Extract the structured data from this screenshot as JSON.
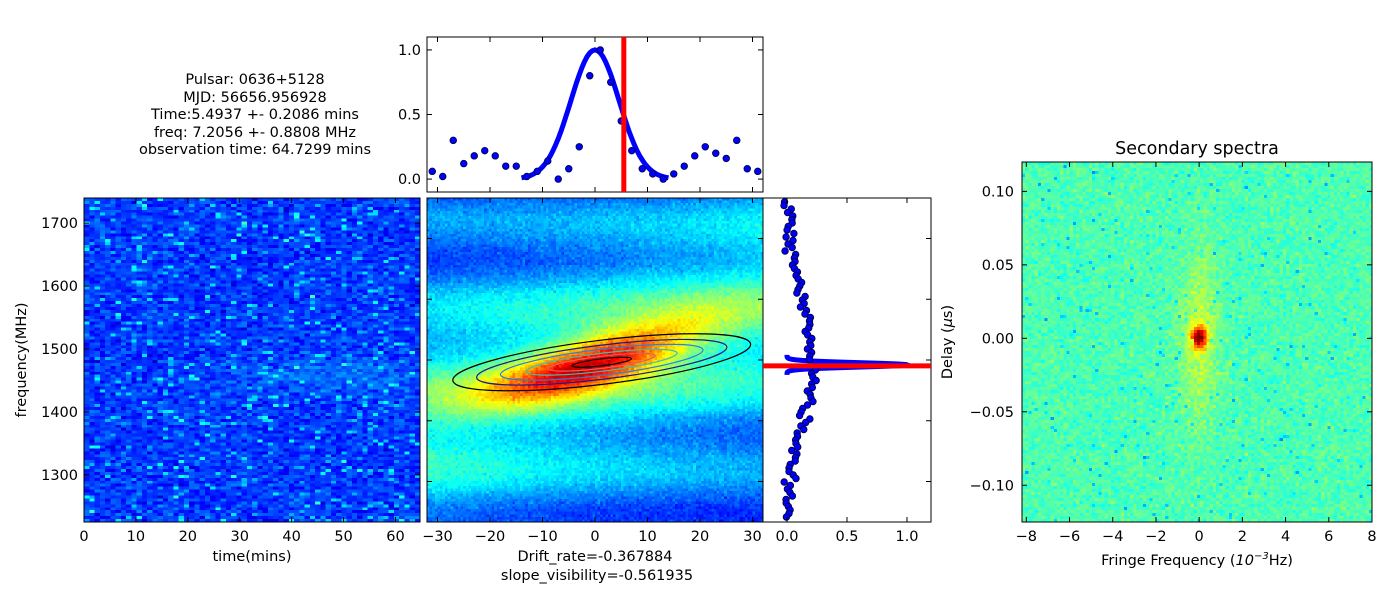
{
  "info": {
    "pulsar": "Pulsar: 0636+5128",
    "mjd": "MJD: 56656.956928",
    "time": "Time:5.4937 +- 0.2086 mins",
    "freq": "freq: 7.2056 +- 0.8808 MHz",
    "obs_time": "observation time: 64.7299 mins"
  },
  "chart_data": [
    {
      "id": "dynamic-spectrum",
      "type": "heatmap",
      "xlabel": "time(mins)",
      "ylabel": "frequency(MHz)",
      "xlim": [
        0,
        64.73
      ],
      "ylim": [
        1225,
        1740
      ],
      "xticks": [
        0,
        10,
        20,
        30,
        40,
        50,
        60
      ],
      "yticks": [
        1300,
        1400,
        1500,
        1600,
        1700
      ],
      "colormap": "jet",
      "value_range": [
        0.05,
        0.5
      ],
      "description_values": "noise-dominated low-intensity spectrum"
    },
    {
      "id": "time-acf-profile",
      "type": "scatter",
      "xlim": [
        -32,
        32
      ],
      "ylim": [
        -0.1,
        1.1
      ],
      "yticks": [
        "0.0",
        "0.5",
        "1.0"
      ],
      "fit_color": "#0000ff",
      "marker_color": "#0000ff",
      "marker_edge": "#00003a",
      "x": [
        -31,
        -29,
        -27,
        -25,
        -23,
        -21,
        -19,
        -17,
        -15,
        -13,
        -11,
        -9,
        -7,
        -5,
        -3,
        -1,
        1,
        3,
        5,
        7,
        9,
        11,
        13,
        15,
        17,
        19,
        21,
        23,
        25,
        27,
        29,
        31
      ],
      "y": [
        0.06,
        0.02,
        0.3,
        0.12,
        0.18,
        0.22,
        0.18,
        0.1,
        0.1,
        0.02,
        0.06,
        0.14,
        0.0,
        0.08,
        0.25,
        0.8,
        1.0,
        0.75,
        0.45,
        0.22,
        0.08,
        0.04,
        0.0,
        0.04,
        0.1,
        0.18,
        0.25,
        0.2,
        0.16,
        0.3,
        0.08,
        0.06
      ],
      "fit_center": 0,
      "fit_sigma": 4.6,
      "marker_line_x": 5.49
    },
    {
      "id": "2d-acf",
      "type": "heatmap",
      "xlabel": "Drift_rate=-0.367884",
      "xlabel2": "slope_visibility=-0.561935",
      "xlim": [
        -32,
        32
      ],
      "xticks": [
        -30,
        -20,
        -10,
        0,
        10,
        20,
        30
      ],
      "colormap": "jet",
      "drift_rate": -0.367884,
      "slope_visibility": -0.561935
    },
    {
      "id": "freq-acf-profile",
      "type": "scatter",
      "xlim": [
        -0.2,
        1.2
      ],
      "xticks": [
        "0.0",
        "0.5",
        "1.0"
      ],
      "fit_color": "#0000ff",
      "marker_color": "#0000ff",
      "peak_y_fraction": 0.515,
      "marker_line_fraction": 0.515
    },
    {
      "id": "secondary-spectra",
      "type": "heatmap",
      "title": "Secondary spectra",
      "xlabel": "Fringe Frequency (10^-3 Hz)",
      "xlabel_main": "Fringe Frequency (",
      "xlabel_base": "10",
      "xlabel_exp": "−3",
      "xlabel_tail": "Hz)",
      "ylabel": "Delay (μs)",
      "ylabel_main": "Delay (",
      "ylabel_mu": "μ",
      "ylabel_s": "s)",
      "xlim": [
        -8.2,
        8.0
      ],
      "ylim": [
        -0.125,
        0.12
      ],
      "xticks": [
        -8,
        -6,
        -4,
        -2,
        0,
        2,
        4,
        6,
        8
      ],
      "yticks": [
        "0.10",
        "0.05",
        "0.00",
        "−0.05",
        "−0.10"
      ],
      "ytick_values": [
        0.1,
        0.05,
        0.0,
        -0.05,
        -0.1
      ],
      "colormap": "jet"
    }
  ]
}
